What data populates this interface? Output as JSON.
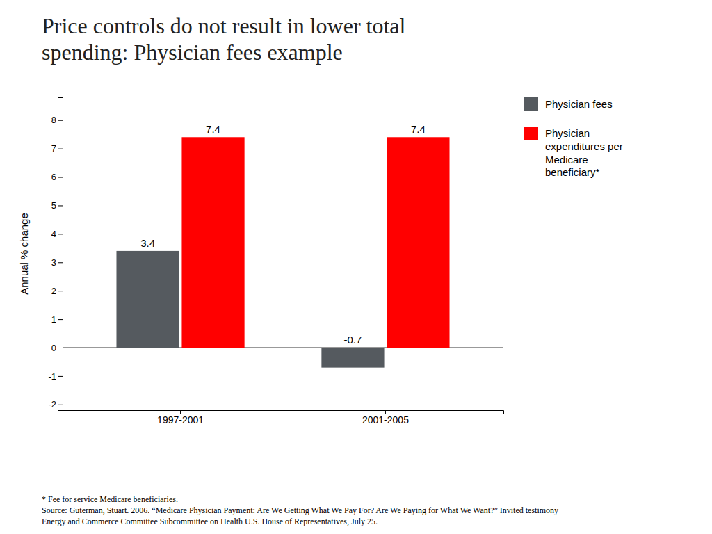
{
  "chart_data": {
    "type": "bar",
    "title": "Price controls do not result in lower total\nspending: Physician fees example",
    "categories": [
      "1997-2001",
      "2001-2005"
    ],
    "series": [
      {
        "name": "Physician fees",
        "color": "#555a5f",
        "values": [
          3.4,
          -0.7
        ]
      },
      {
        "name": "Physician\nexpenditures per\nMedicare\nbeneficiary*",
        "color": "#FF0000",
        "values": [
          7.4,
          7.4
        ]
      }
    ],
    "ylabel": "Annual % change",
    "ylim": [
      -2.2,
      8.8
    ],
    "yticks": [
      -2,
      -1,
      0,
      1,
      2,
      3,
      4,
      5,
      6,
      7,
      8
    ],
    "grid": false,
    "legend": "right",
    "data_labels": true,
    "annotations": [
      "* Fee for service Medicare beneficiaries.",
      "Source: Guterman, Stuart. 2006. “Medicare Physician Payment: Are We Getting What We Pay For? Are We Paying for What We Want?” Invited testimony",
      "Energy and Commerce Committee Subcommittee on Health U.S. House of Representatives, July 25."
    ]
  }
}
